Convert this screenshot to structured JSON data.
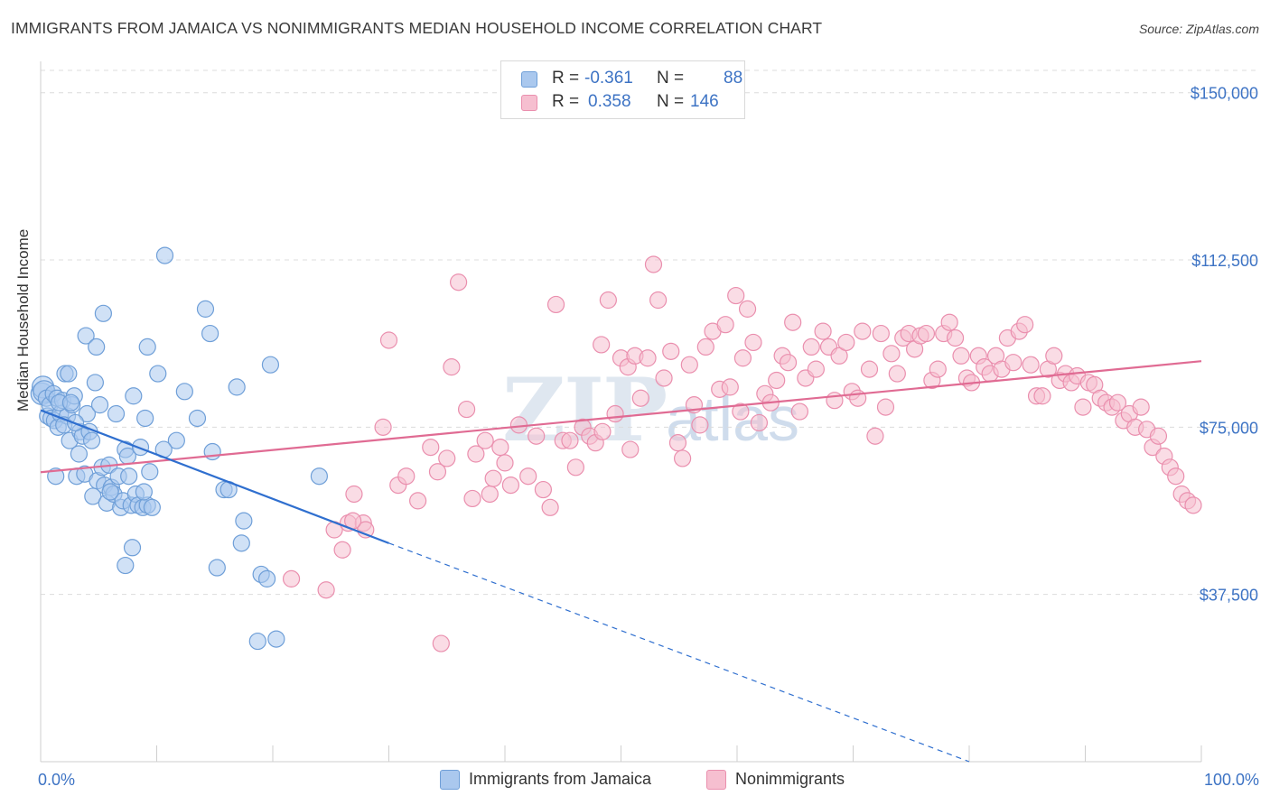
{
  "title": "IMMIGRANTS FROM JAMAICA VS NONIMMIGRANTS MEDIAN HOUSEHOLD INCOME CORRELATION CHART",
  "source": "Source: ZipAtlas.com",
  "watermark": {
    "zip": "ZIP",
    "atlas": "atlas"
  },
  "legend": {
    "rows": [
      {
        "r_label": "R =",
        "r_value": "-0.361",
        "n_label": "N =",
        "n_value": "88"
      },
      {
        "r_label": "R =",
        "r_value": "0.358",
        "n_label": "N =",
        "n_value": "146"
      }
    ]
  },
  "colors": {
    "blue_fill": "#aac8ee",
    "blue_stroke": "#6f9fd8",
    "blue_line": "#2f6fcf",
    "pink_fill": "#f6bfd0",
    "pink_stroke": "#ea8fae",
    "pink_line": "#e06b93",
    "grid": "#dcdcdc",
    "tick_text": "#3d73c4"
  },
  "chart_data": {
    "type": "scatter",
    "title": "IMMIGRANTS FROM JAMAICA VS NONIMMIGRANTS MEDIAN HOUSEHOLD INCOME CORRELATION CHART",
    "xlabel": "",
    "ylabel": "Median Household Income",
    "xlim": [
      0,
      100
    ],
    "ylim": [
      0,
      155000
    ],
    "x_tick_labels": [
      "0.0%",
      "100.0%"
    ],
    "y_ticks": [
      37500,
      75000,
      112500,
      150000
    ],
    "y_tick_labels": [
      "$37,500",
      "$75,000",
      "$112,500",
      "$150,000"
    ],
    "series": [
      {
        "name": "Immigrants from Jamaica",
        "color": "blue",
        "r": -0.361,
        "n": 88,
        "trend": {
          "x0": 0,
          "y0": 78800,
          "x1": 30,
          "y1": 49000,
          "dash_to_x": 80,
          "dash_to_y": 0
        },
        "points": [
          [
            0.1,
            82500
          ],
          [
            0.2,
            84000
          ],
          [
            0.3,
            83000
          ],
          [
            0.5,
            81500
          ],
          [
            0.6,
            77500
          ],
          [
            0.8,
            80000
          ],
          [
            0.9,
            77000
          ],
          [
            1.1,
            82500
          ],
          [
            1.2,
            76500
          ],
          [
            1.4,
            81500
          ],
          [
            1.5,
            75000
          ],
          [
            1.7,
            78000
          ],
          [
            1.9,
            81000
          ],
          [
            2.1,
            87000
          ],
          [
            2.3,
            77500
          ],
          [
            2.5,
            72000
          ],
          [
            2.7,
            80000
          ],
          [
            2.9,
            82000
          ],
          [
            3.1,
            64000
          ],
          [
            3.3,
            69000
          ],
          [
            3.4,
            74000
          ],
          [
            3.6,
            73000
          ],
          [
            3.8,
            64500
          ],
          [
            4.0,
            78000
          ],
          [
            4.2,
            74000
          ],
          [
            4.4,
            72000
          ],
          [
            4.5,
            59500
          ],
          [
            4.7,
            85000
          ],
          [
            4.9,
            63000
          ],
          [
            5.1,
            80000
          ],
          [
            5.3,
            66000
          ],
          [
            5.5,
            62000
          ],
          [
            5.7,
            58000
          ],
          [
            5.9,
            66500
          ],
          [
            6.1,
            61500
          ],
          [
            6.3,
            60000
          ],
          [
            6.5,
            78000
          ],
          [
            6.7,
            64000
          ],
          [
            6.9,
            57000
          ],
          [
            7.1,
            58500
          ],
          [
            7.3,
            70000
          ],
          [
            7.5,
            68500
          ],
          [
            7.6,
            64000
          ],
          [
            7.8,
            57500
          ],
          [
            8.0,
            82000
          ],
          [
            8.2,
            60000
          ],
          [
            8.4,
            57500
          ],
          [
            8.6,
            70500
          ],
          [
            8.8,
            57000
          ],
          [
            9.0,
            77000
          ],
          [
            9.2,
            57500
          ],
          [
            9.4,
            65000
          ],
          [
            9.6,
            57000
          ],
          [
            1.3,
            64000
          ],
          [
            2.4,
            87000
          ],
          [
            3.9,
            95500
          ],
          [
            4.8,
            93000
          ],
          [
            5.4,
            100500
          ],
          [
            7.3,
            44000
          ],
          [
            7.9,
            48000
          ],
          [
            9.2,
            93000
          ],
          [
            10.1,
            87000
          ],
          [
            10.7,
            113500
          ],
          [
            11.7,
            72000
          ],
          [
            12.4,
            83000
          ],
          [
            13.5,
            77000
          ],
          [
            14.2,
            101500
          ],
          [
            14.8,
            69500
          ],
          [
            14.6,
            96000
          ],
          [
            15.8,
            61000
          ],
          [
            16.2,
            61000
          ],
          [
            16.9,
            84000
          ],
          [
            17.3,
            49000
          ],
          [
            17.5,
            54000
          ],
          [
            18.7,
            27000
          ],
          [
            19.0,
            42000
          ],
          [
            19.5,
            41000
          ],
          [
            19.8,
            89000
          ],
          [
            20.3,
            27500
          ],
          [
            15.2,
            43500
          ],
          [
            10.6,
            70000
          ],
          [
            24.0,
            64000
          ],
          [
            2.0,
            75500
          ],
          [
            3.0,
            76000
          ],
          [
            1.6,
            80500
          ],
          [
            2.6,
            80500
          ],
          [
            6.0,
            60500
          ],
          [
            8.9,
            60500
          ]
        ]
      },
      {
        "name": "Nonimmigrants",
        "color": "pink",
        "r": 0.358,
        "n": 146,
        "trend": {
          "x0": 0,
          "y0": 64900,
          "x1": 100,
          "y1": 89800
        },
        "points": [
          [
            21.6,
            41000
          ],
          [
            24.6,
            38500
          ],
          [
            25.3,
            52000
          ],
          [
            26.0,
            47500
          ],
          [
            26.5,
            53500
          ],
          [
            27.0,
            60000
          ],
          [
            27.8,
            53500
          ],
          [
            29.5,
            75000
          ],
          [
            30.0,
            94500
          ],
          [
            30.8,
            62000
          ],
          [
            31.5,
            64000
          ],
          [
            32.5,
            58500
          ],
          [
            33.6,
            70500
          ],
          [
            34.2,
            65000
          ],
          [
            35.0,
            68000
          ],
          [
            35.4,
            88500
          ],
          [
            36.0,
            107500
          ],
          [
            36.7,
            79000
          ],
          [
            37.2,
            59000
          ],
          [
            37.5,
            69000
          ],
          [
            38.3,
            72000
          ],
          [
            38.7,
            60000
          ],
          [
            39.0,
            63500
          ],
          [
            39.6,
            70500
          ],
          [
            40.0,
            67000
          ],
          [
            40.5,
            62000
          ],
          [
            41.2,
            75500
          ],
          [
            42.0,
            64000
          ],
          [
            42.7,
            73000
          ],
          [
            43.3,
            61000
          ],
          [
            43.9,
            57000
          ],
          [
            44.4,
            102500
          ],
          [
            45.0,
            72000
          ],
          [
            45.6,
            72000
          ],
          [
            46.1,
            66000
          ],
          [
            46.7,
            75000
          ],
          [
            47.3,
            73000
          ],
          [
            47.8,
            71500
          ],
          [
            48.3,
            93500
          ],
          [
            48.9,
            103500
          ],
          [
            49.5,
            78000
          ],
          [
            50.0,
            90500
          ],
          [
            50.6,
            88500
          ],
          [
            51.2,
            91000
          ],
          [
            51.7,
            81500
          ],
          [
            52.3,
            90500
          ],
          [
            52.8,
            111500
          ],
          [
            53.2,
            103500
          ],
          [
            53.7,
            86000
          ],
          [
            54.3,
            92000
          ],
          [
            54.9,
            71500
          ],
          [
            55.3,
            68000
          ],
          [
            55.9,
            89000
          ],
          [
            56.3,
            80000
          ],
          [
            56.8,
            75500
          ],
          [
            57.3,
            93000
          ],
          [
            57.9,
            96500
          ],
          [
            58.5,
            83500
          ],
          [
            59.0,
            98000
          ],
          [
            59.4,
            84000
          ],
          [
            59.9,
            104500
          ],
          [
            60.5,
            90500
          ],
          [
            60.9,
            101500
          ],
          [
            61.4,
            94000
          ],
          [
            61.9,
            76000
          ],
          [
            62.4,
            82500
          ],
          [
            62.9,
            80500
          ],
          [
            63.4,
            85500
          ],
          [
            63.9,
            91000
          ],
          [
            64.4,
            89500
          ],
          [
            64.8,
            98500
          ],
          [
            65.4,
            78500
          ],
          [
            65.9,
            86000
          ],
          [
            66.4,
            93000
          ],
          [
            66.8,
            88000
          ],
          [
            67.4,
            96500
          ],
          [
            67.9,
            93000
          ],
          [
            68.4,
            81000
          ],
          [
            68.8,
            91000
          ],
          [
            69.4,
            94000
          ],
          [
            69.9,
            83000
          ],
          [
            70.4,
            81500
          ],
          [
            70.8,
            96500
          ],
          [
            71.4,
            88000
          ],
          [
            71.9,
            73000
          ],
          [
            72.4,
            96000
          ],
          [
            72.8,
            79500
          ],
          [
            73.3,
            91500
          ],
          [
            73.8,
            87000
          ],
          [
            74.3,
            95000
          ],
          [
            74.8,
            96000
          ],
          [
            75.3,
            92500
          ],
          [
            75.8,
            95500
          ],
          [
            76.3,
            96000
          ],
          [
            76.8,
            85500
          ],
          [
            77.3,
            88000
          ],
          [
            77.8,
            96000
          ],
          [
            78.3,
            98500
          ],
          [
            78.8,
            95000
          ],
          [
            79.3,
            91000
          ],
          [
            79.8,
            86000
          ],
          [
            80.2,
            85000
          ],
          [
            80.8,
            91000
          ],
          [
            81.3,
            88500
          ],
          [
            81.8,
            87000
          ],
          [
            82.3,
            91000
          ],
          [
            82.8,
            88000
          ],
          [
            83.3,
            95000
          ],
          [
            83.8,
            89500
          ],
          [
            84.3,
            96500
          ],
          [
            84.8,
            98000
          ],
          [
            85.3,
            89000
          ],
          [
            85.8,
            82000
          ],
          [
            86.3,
            82000
          ],
          [
            86.8,
            88000
          ],
          [
            87.3,
            91000
          ],
          [
            87.8,
            85500
          ],
          [
            88.3,
            87000
          ],
          [
            88.8,
            85000
          ],
          [
            89.3,
            86500
          ],
          [
            89.8,
            79500
          ],
          [
            90.3,
            85000
          ],
          [
            90.8,
            84500
          ],
          [
            91.3,
            81500
          ],
          [
            91.8,
            80500
          ],
          [
            92.3,
            79500
          ],
          [
            92.8,
            80500
          ],
          [
            93.3,
            76500
          ],
          [
            93.8,
            78000
          ],
          [
            94.3,
            75000
          ],
          [
            94.8,
            79500
          ],
          [
            95.3,
            74500
          ],
          [
            95.8,
            70500
          ],
          [
            96.3,
            73000
          ],
          [
            96.8,
            68500
          ],
          [
            97.3,
            66000
          ],
          [
            97.8,
            64000
          ],
          [
            98.3,
            60000
          ],
          [
            98.8,
            58500
          ],
          [
            99.3,
            57500
          ],
          [
            34.5,
            26500
          ],
          [
            28.0,
            52000
          ],
          [
            26.9,
            54000
          ],
          [
            50.8,
            70000
          ],
          [
            48.4,
            74000
          ],
          [
            60.3,
            78500
          ]
        ]
      }
    ]
  },
  "bottom_legend": [
    "Immigrants from Jamaica",
    "Nonimmigrants"
  ]
}
